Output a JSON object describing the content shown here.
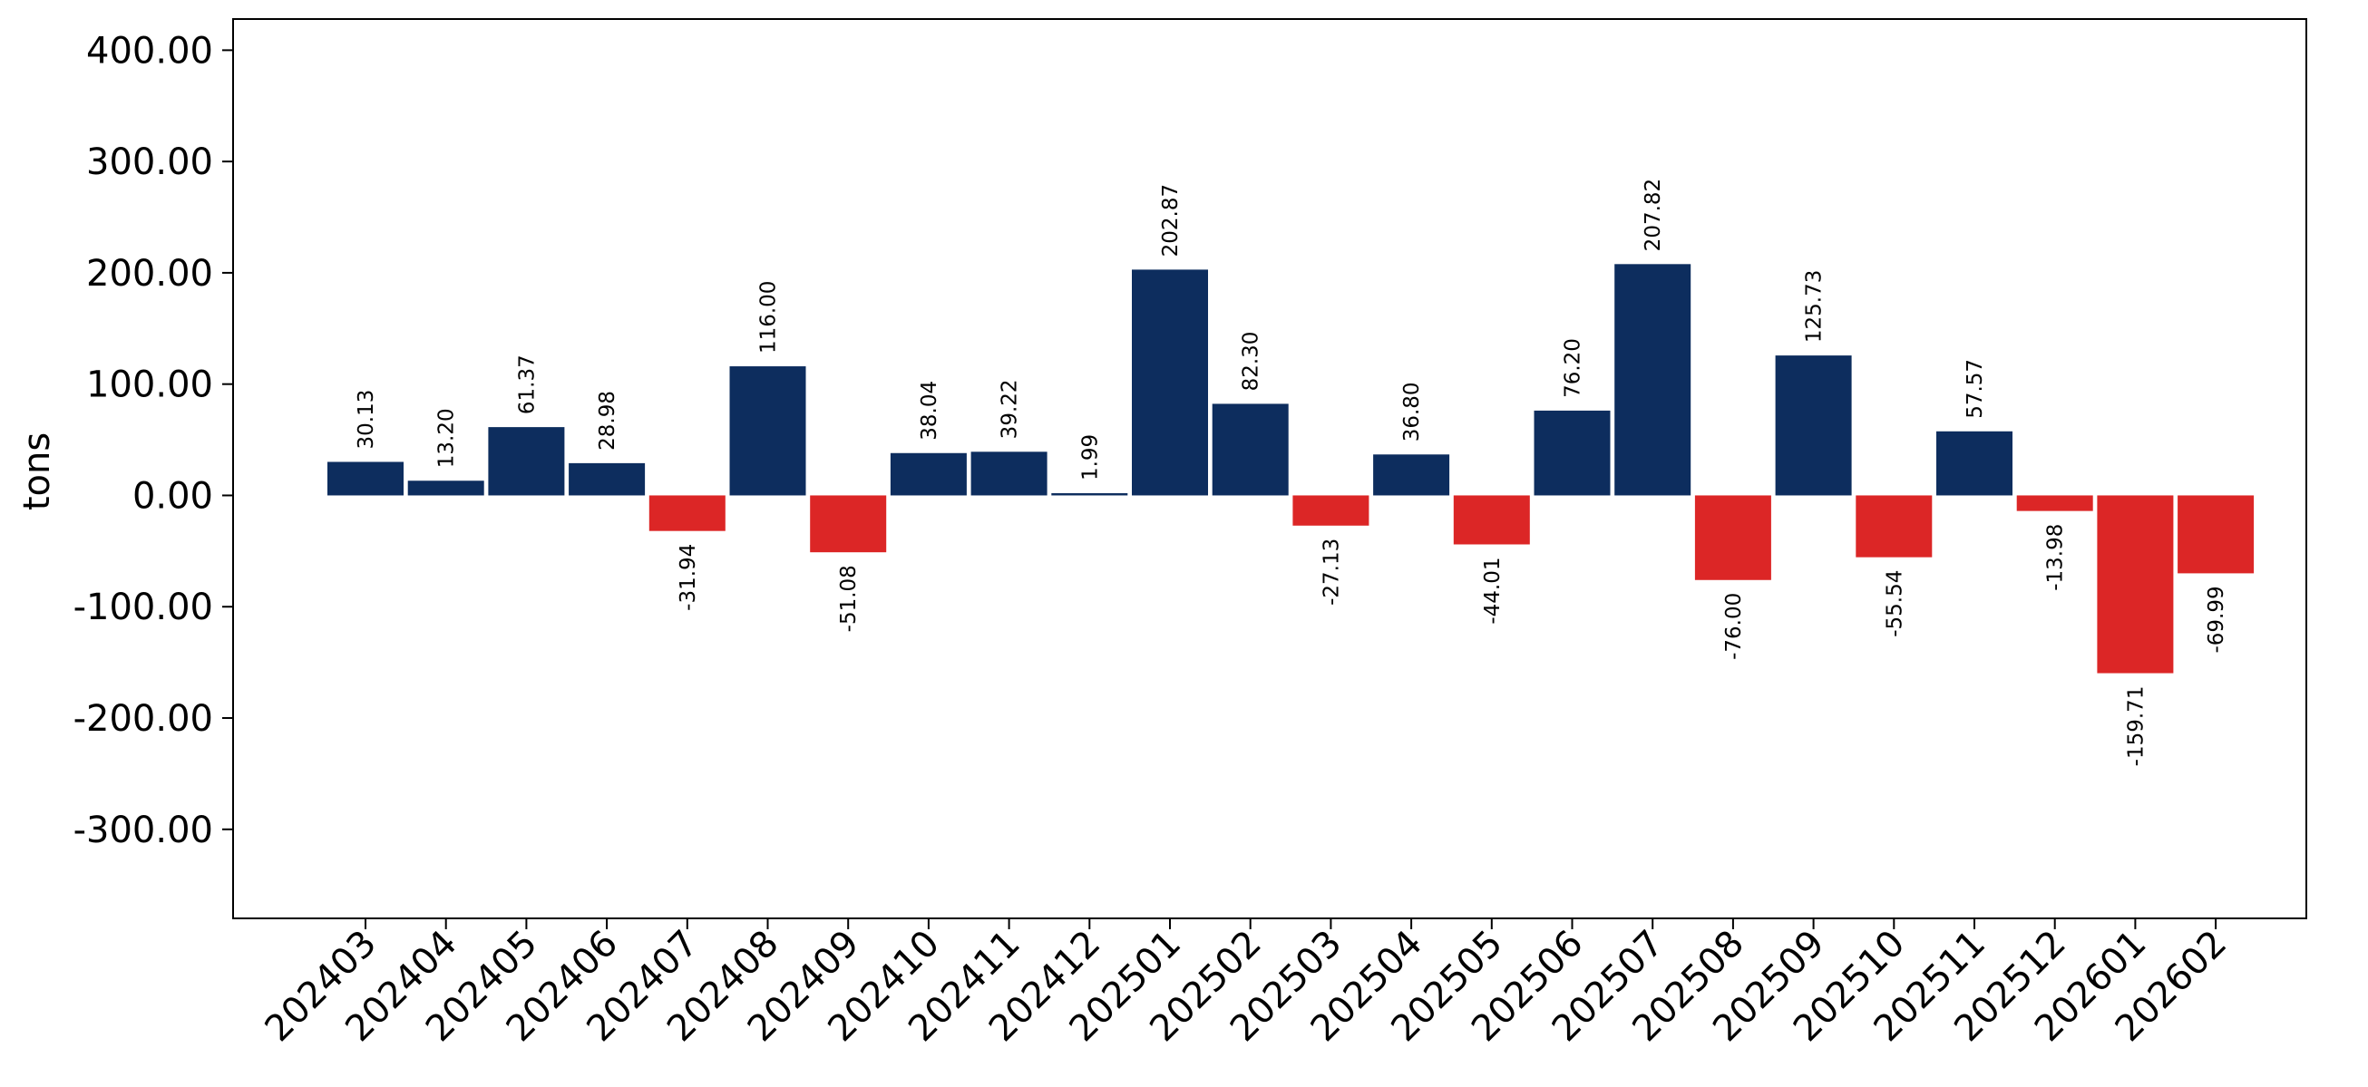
{
  "chart_data": {
    "type": "bar",
    "title": "",
    "xlabel": "",
    "ylabel": "tons",
    "ylim": [
      -380,
      428
    ],
    "yticks": [
      -300,
      -200,
      -100,
      0,
      100,
      200,
      300,
      400
    ],
    "ytick_labels": [
      "-300.00",
      "-200.00",
      "-100.00",
      "0.00",
      "100.00",
      "200.00",
      "300.00",
      "400.00"
    ],
    "grid": false,
    "legend": "none",
    "colors": {
      "positive": "#0d2d5e",
      "negative": "#dc2626"
    },
    "categories": [
      "202403",
      "202404",
      "202405",
      "202406",
      "202407",
      "202408",
      "202409",
      "202410",
      "202411",
      "202412",
      "202501",
      "202502",
      "202503",
      "202504",
      "202505",
      "202506",
      "202507",
      "202508",
      "202509",
      "202510",
      "202511",
      "202512",
      "202601",
      "202602"
    ],
    "values": [
      30.13,
      13.2,
      61.37,
      28.98,
      -31.94,
      116.0,
      -51.08,
      38.04,
      39.22,
      1.99,
      202.87,
      82.3,
      -27.13,
      36.8,
      -44.01,
      76.2,
      207.82,
      -76.0,
      125.73,
      -55.54,
      57.57,
      -13.98,
      -159.71,
      -69.99
    ],
    "value_labels": [
      "30.13",
      "13.20",
      "61.37",
      "28.98",
      "-31.94",
      "116.00",
      "-51.08",
      "38.04",
      "39.22",
      "1.99",
      "202.87",
      "82.30",
      "-27.13",
      "36.80",
      "-44.01",
      "76.20",
      "207.82",
      "-76.00",
      "125.73",
      "-55.54",
      "57.57",
      "-13.98",
      "-159.71",
      "-69.99"
    ]
  }
}
